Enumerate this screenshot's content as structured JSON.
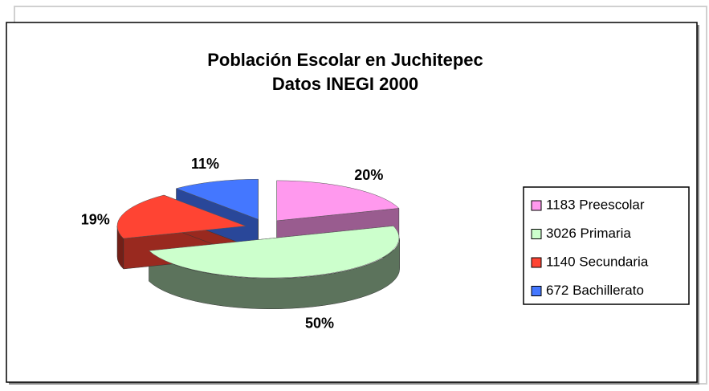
{
  "chart_data": {
    "type": "pie",
    "title": "Población Escolar en Juchitepec",
    "subtitle": "Datos INEGI 2000",
    "categories": [
      "1183 Preescolar",
      "3026 Primaria",
      "1140 Secundaria",
      "672 Bachillerato"
    ],
    "values": [
      20,
      50,
      19,
      11
    ],
    "value_labels": [
      "20%",
      "50%",
      "19%",
      "11%"
    ],
    "colors": [
      "#ff99ee",
      "#ccffcc",
      "#ff4433",
      "#4477ff"
    ],
    "legend": "right"
  }
}
